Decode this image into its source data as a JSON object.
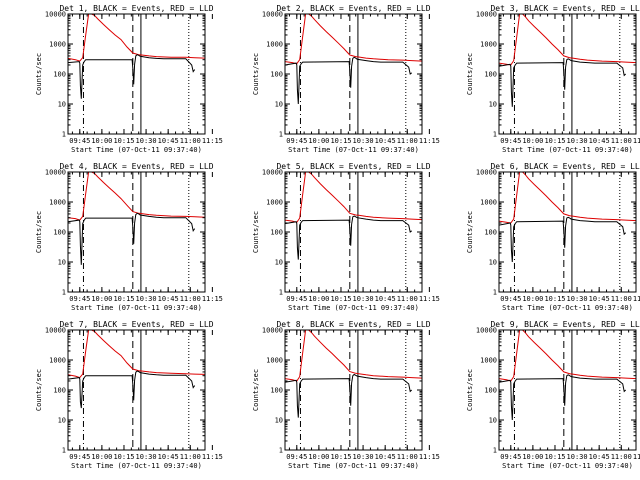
{
  "chart_data": {
    "type": "line",
    "layout": "3x3 grid of detector panels",
    "ylog": true,
    "ylim": [
      1,
      10000
    ],
    "xlim_minutes": [
      0,
      93
    ],
    "y_ticks": [
      "1",
      "10",
      "100",
      "1000",
      "10000"
    ],
    "ylabel": "Counts/sec",
    "legend_text": "BLACK = Events, RED = LLD",
    "x_tick_values": [
      8,
      23,
      38,
      53,
      68,
      83,
      98
    ],
    "markers": {
      "dash_dot_line_min": 10.5,
      "dashed_line_min": 44,
      "solid_line_min": 49.5,
      "dotted_line_min": 82
    },
    "series_colors": {
      "events": "#000000",
      "lld": "#dd0000"
    },
    "panels": [
      {
        "title": "Det 1, BLACK = Events, RED = LLD",
        "xlabel": "Start Time (07-Oct-11 09:37:40)",
        "x_ticks": [
          "09:45",
          "10:00",
          "10:15",
          "10:30",
          "10:45",
          "11:00",
          "11:15"
        ],
        "events": {
          "x": [
            0,
            7.6,
            8.0,
            8.4,
            9,
            10,
            10.5,
            11,
            12,
            43.5,
            44,
            44.6,
            45.2,
            46,
            47,
            48,
            49,
            55,
            60,
            65,
            70,
            75,
            80,
            84,
            85,
            86
          ],
          "y": [
            240,
            260,
            230,
            40,
            15,
            200,
            230,
            260,
            300,
            300,
            160,
            45,
            210,
            400,
            440,
            420,
            390,
            350,
            330,
            320,
            320,
            320,
            320,
            200,
            120,
            140
          ]
        },
        "lld": {
          "x": [
            0,
            5,
            8,
            10,
            12,
            14,
            16,
            18,
            20,
            24,
            28,
            32,
            36,
            40,
            44,
            48,
            50,
            55,
            60,
            70,
            80,
            86,
            93
          ],
          "y": [
            330,
            300,
            270,
            350,
            2000,
            10000,
            10000,
            9000,
            7000,
            4500,
            3000,
            2000,
            1400,
            800,
            500,
            440,
            430,
            400,
            380,
            360,
            360,
            350,
            340
          ]
        }
      },
      {
        "title": "Det 2, BLACK = Events, RED = LLD",
        "xlabel": "Start Time (07-Oct-11 09:37:40)",
        "x_ticks": [
          "09:45",
          "10:00",
          "10:15",
          "10:30",
          "10:45",
          "11:00",
          "11:15"
        ],
        "events": {
          "x": [
            0,
            7.6,
            8.0,
            8.4,
            9,
            10,
            10.5,
            11,
            12,
            43.5,
            44,
            44.6,
            45.2,
            46,
            47,
            48,
            49,
            55,
            60,
            65,
            70,
            75,
            80,
            84,
            85,
            86
          ],
          "y": [
            200,
            230,
            200,
            30,
            10,
            180,
            200,
            220,
            250,
            260,
            130,
            35,
            180,
            330,
            360,
            340,
            310,
            280,
            260,
            250,
            250,
            250,
            250,
            170,
            100,
            110
          ]
        },
        "lld": {
          "x": [
            0,
            5,
            8,
            10,
            12,
            14,
            16,
            18,
            20,
            24,
            28,
            32,
            36,
            40,
            44,
            48,
            50,
            55,
            60,
            70,
            80,
            86,
            93
          ],
          "y": [
            260,
            240,
            220,
            300,
            1800,
            10000,
            10000,
            8500,
            6500,
            4000,
            2600,
            1700,
            1100,
            700,
            430,
            380,
            370,
            340,
            320,
            300,
            290,
            280,
            270
          ]
        }
      },
      {
        "title": "Det 3, BLACK = Events, RED = LLD",
        "xlabel": "Start Time (07-Oct-11 09:37:40)",
        "x_ticks": [
          "09:45",
          "10:00",
          "10:15",
          "10:30",
          "10:45",
          "11:00",
          "11:15"
        ],
        "events": {
          "x": [
            0,
            7.6,
            8.0,
            8.4,
            9,
            10,
            10.5,
            11,
            12,
            43.5,
            44,
            44.6,
            45.2,
            46,
            47,
            48,
            49,
            55,
            60,
            65,
            70,
            75,
            80,
            84,
            85,
            86
          ],
          "y": [
            180,
            210,
            180,
            25,
            8,
            160,
            180,
            200,
            230,
            240,
            120,
            30,
            170,
            300,
            320,
            300,
            280,
            250,
            240,
            230,
            230,
            230,
            230,
            160,
            90,
            100
          ]
        },
        "lld": {
          "x": [
            0,
            5,
            8,
            10,
            12,
            14,
            16,
            18,
            20,
            24,
            28,
            32,
            36,
            40,
            44,
            48,
            50,
            55,
            60,
            70,
            80,
            86,
            93
          ],
          "y": [
            230,
            210,
            200,
            280,
            1700,
            10000,
            10000,
            8000,
            6000,
            3800,
            2500,
            1600,
            1000,
            650,
            400,
            350,
            340,
            310,
            290,
            270,
            260,
            250,
            240
          ]
        }
      },
      {
        "title": "Det 4, BLACK = Events, RED = LLD",
        "xlabel": "Start Time (07-Oct-11 09:37:40)",
        "x_ticks": [
          "09:45",
          "10:00",
          "10:15",
          "10:30",
          "10:45",
          "11:00",
          "11:15"
        ],
        "events": {
          "x": [
            0,
            7.6,
            8.0,
            8.4,
            9,
            10,
            10.5,
            11,
            12,
            43.5,
            44,
            44.6,
            45.2,
            46,
            47,
            48,
            49,
            55,
            60,
            65,
            70,
            75,
            80,
            84,
            85,
            86
          ],
          "y": [
            220,
            250,
            220,
            35,
            8,
            190,
            220,
            250,
            290,
            290,
            150,
            40,
            200,
            380,
            420,
            400,
            370,
            330,
            310,
            300,
            300,
            300,
            300,
            190,
            110,
            130
          ]
        },
        "lld": {
          "x": [
            0,
            5,
            8,
            10,
            12,
            14,
            16,
            18,
            20,
            24,
            28,
            32,
            36,
            40,
            44,
            48,
            50,
            55,
            60,
            70,
            80,
            86,
            93
          ],
          "y": [
            300,
            280,
            250,
            330,
            1900,
            10000,
            10000,
            9000,
            7000,
            4500,
            3000,
            2000,
            1300,
            780,
            480,
            420,
            410,
            380,
            360,
            340,
            330,
            320,
            310
          ]
        }
      },
      {
        "title": "Det 5, BLACK = Events, RED = LLD",
        "xlabel": "Start Time (07-Oct-11 09:37:40)",
        "x_ticks": [
          "09:45",
          "10:00",
          "10:15",
          "10:30",
          "10:45",
          "11:00",
          "11:15"
        ],
        "events": {
          "x": [
            0,
            7.6,
            8.0,
            8.4,
            9,
            10,
            10.5,
            11,
            12,
            43.5,
            44,
            44.6,
            45.2,
            46,
            47,
            48,
            49,
            55,
            60,
            65,
            70,
            75,
            80,
            84,
            85,
            86
          ],
          "y": [
            190,
            220,
            190,
            30,
            12,
            170,
            190,
            210,
            240,
            250,
            130,
            35,
            180,
            320,
            340,
            320,
            300,
            270,
            250,
            240,
            240,
            240,
            240,
            170,
            100,
            110
          ]
        },
        "lld": {
          "x": [
            0,
            5,
            8,
            10,
            12,
            14,
            16,
            18,
            20,
            24,
            28,
            32,
            36,
            40,
            44,
            48,
            50,
            55,
            60,
            70,
            80,
            86,
            93
          ],
          "y": [
            250,
            230,
            210,
            290,
            1800,
            10000,
            10000,
            8500,
            6500,
            4000,
            2600,
            1700,
            1100,
            700,
            420,
            370,
            360,
            330,
            310,
            290,
            280,
            270,
            260
          ]
        }
      },
      {
        "title": "Det 6, BLACK = Events, RED = LLD",
        "xlabel": "Start Time (07-Oct-11 09:37:40)",
        "x_ticks": [
          "09:45",
          "10:00",
          "10:15",
          "10:30",
          "10:45",
          "11:00",
          "11:15"
        ],
        "events": {
          "x": [
            0,
            7.6,
            8.0,
            8.4,
            9,
            10,
            10.5,
            11,
            12,
            43.5,
            44,
            44.6,
            45.2,
            46,
            47,
            48,
            49,
            55,
            60,
            65,
            70,
            75,
            80,
            84,
            85,
            86
          ],
          "y": [
            170,
            200,
            170,
            25,
            10,
            150,
            170,
            190,
            220,
            230,
            115,
            30,
            160,
            290,
            310,
            290,
            270,
            240,
            230,
            220,
            220,
            220,
            220,
            150,
            85,
            95
          ]
        },
        "lld": {
          "x": [
            0,
            5,
            8,
            10,
            12,
            14,
            16,
            18,
            20,
            24,
            28,
            32,
            36,
            40,
            44,
            48,
            50,
            55,
            60,
            70,
            80,
            86,
            93
          ],
          "y": [
            230,
            210,
            200,
            270,
            1700,
            10000,
            10000,
            8000,
            6000,
            3800,
            2500,
            1600,
            1000,
            650,
            400,
            350,
            340,
            310,
            290,
            270,
            260,
            250,
            240
          ]
        }
      },
      {
        "title": "Det 7, BLACK = Events, RED = LLD",
        "xlabel": "Start Time (07-Oct-11 09:37:40)",
        "x_ticks": [
          "09:45",
          "10:00",
          "10:15",
          "10:30",
          "10:45",
          "11:00",
          "11:15"
        ],
        "events": {
          "x": [
            0,
            7.6,
            8.0,
            8.4,
            9,
            10,
            10.5,
            11,
            12,
            43.5,
            44,
            44.6,
            45.2,
            46,
            47,
            48,
            49,
            55,
            60,
            65,
            70,
            75,
            80,
            84,
            85,
            86
          ],
          "y": [
            230,
            260,
            230,
            40,
            25,
            200,
            230,
            260,
            300,
            300,
            160,
            45,
            210,
            390,
            430,
            410,
            380,
            340,
            320,
            310,
            310,
            310,
            310,
            200,
            120,
            140
          ]
        },
        "lld": {
          "x": [
            0,
            5,
            8,
            10,
            12,
            14,
            16,
            18,
            20,
            24,
            28,
            32,
            36,
            40,
            44,
            48,
            50,
            55,
            60,
            70,
            80,
            86,
            93
          ],
          "y": [
            320,
            290,
            260,
            340,
            2000,
            10000,
            10000,
            9000,
            7000,
            4500,
            3000,
            2000,
            1400,
            800,
            500,
            440,
            430,
            400,
            380,
            360,
            350,
            340,
            330
          ]
        }
      },
      {
        "title": "Det 8, BLACK = Events, RED = LLD",
        "xlabel": "Start Time (07-Oct-11 09:37:40)",
        "x_ticks": [
          "09:45",
          "10:00",
          "10:15",
          "10:30",
          "10:45",
          "11:00",
          "11:15"
        ],
        "events": {
          "x": [
            0,
            7.6,
            8.0,
            8.4,
            9,
            10,
            10.5,
            11,
            12,
            43.5,
            44,
            44.6,
            45.2,
            46,
            47,
            48,
            49,
            55,
            60,
            65,
            70,
            75,
            80,
            84,
            85,
            86
          ],
          "y": [
            180,
            210,
            180,
            30,
            12,
            160,
            180,
            200,
            230,
            240,
            120,
            30,
            170,
            300,
            330,
            310,
            290,
            260,
            240,
            230,
            230,
            230,
            230,
            160,
            90,
            100
          ]
        },
        "lld": {
          "x": [
            0,
            5,
            8,
            10,
            12,
            14,
            16,
            18,
            20,
            24,
            28,
            32,
            36,
            40,
            44,
            48,
            50,
            55,
            60,
            70,
            80,
            86,
            93
          ],
          "y": [
            240,
            220,
            200,
            280,
            1750,
            10000,
            10000,
            8200,
            6200,
            3900,
            2500,
            1650,
            1050,
            680,
            410,
            360,
            350,
            320,
            300,
            280,
            270,
            260,
            250
          ]
        }
      },
      {
        "title": "Det 9, BLACK = Events, RED = LLD",
        "xlabel": "Start Time (07-Oct-11 09:37:40)",
        "x_ticks": [
          "09:45",
          "10:00",
          "10:15",
          "10:30",
          "10:45",
          "11:00",
          "11:15"
        ],
        "events": {
          "x": [
            0,
            7.6,
            8.0,
            8.4,
            9,
            10,
            10.5,
            11,
            12,
            43.5,
            44,
            44.6,
            45.2,
            46,
            47,
            48,
            49,
            55,
            60,
            65,
            70,
            75,
            80,
            84,
            85,
            86
          ],
          "y": [
            180,
            210,
            180,
            30,
            10,
            160,
            180,
            200,
            230,
            240,
            120,
            30,
            170,
            300,
            320,
            300,
            280,
            250,
            240,
            230,
            230,
            230,
            230,
            160,
            90,
            100
          ]
        },
        "lld": {
          "x": [
            0,
            5,
            8,
            10,
            12,
            14,
            16,
            18,
            20,
            24,
            28,
            32,
            36,
            40,
            44,
            48,
            50,
            55,
            60,
            70,
            80,
            86,
            93
          ],
          "y": [
            240,
            220,
            200,
            280,
            1700,
            10000,
            10000,
            8000,
            6000,
            3800,
            2500,
            1600,
            1000,
            650,
            400,
            350,
            340,
            310,
            290,
            270,
            260,
            250,
            240
          ]
        }
      }
    ]
  }
}
